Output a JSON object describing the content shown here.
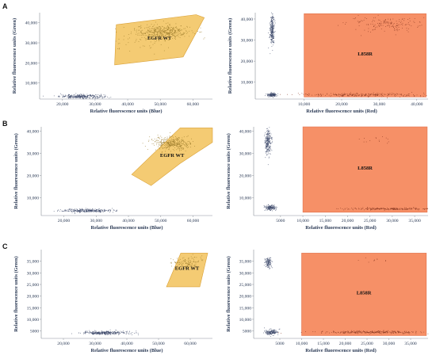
{
  "row_labels": [
    "A",
    "B",
    "C"
  ],
  "colors": {
    "wt_gate_fill": "#f2c25a",
    "wt_gate_stroke": "#d9a035",
    "mut_gate_fill": "#f5875a",
    "mut_gate_stroke": "#e0704a",
    "axis": "#8a9099",
    "neg_cluster": "#3e4a6b",
    "wt_dots": "#9a7a2a",
    "mut_dots": "#8a3a22"
  },
  "chart_data": [
    {
      "id": "A-left",
      "type": "scatter",
      "xlabel": "Relative fluorescence units (Blue)",
      "ylabel": "Relative fluorescence units (Green)",
      "xlim": [
        13000,
        66000
      ],
      "ylim": [
        2000,
        45000
      ],
      "xticks": [
        20000,
        30000,
        40000,
        50000,
        60000
      ],
      "xtick_labels": [
        "20,000",
        "30,000",
        "40,000",
        "50,000",
        "60,000"
      ],
      "yticks": [
        10000,
        20000,
        30000,
        40000
      ],
      "ytick_labels": [
        "10,000",
        "20,000",
        "30,000",
        "40,000"
      ],
      "gate": {
        "label": "EGFR WT",
        "polygon": [
          [
            36000,
            19000
          ],
          [
            36500,
            39000
          ],
          [
            61000,
            44000
          ],
          [
            63500,
            42500
          ],
          [
            57000,
            23000
          ],
          [
            36000,
            19000
          ]
        ]
      },
      "clusters": [
        {
          "role": "negative",
          "cx": 26000,
          "cy": 3300,
          "sx": 3400,
          "sy": 500,
          "n": 320
        },
        {
          "role": "positive",
          "cx": 51000,
          "cy": 35500,
          "sx": 4200,
          "sy": 1700,
          "n": 420
        },
        {
          "role": "positive",
          "cx": 45000,
          "cy": 30000,
          "sx": 5000,
          "sy": 3200,
          "n": 60
        }
      ]
    },
    {
      "id": "A-right",
      "type": "scatter",
      "xlabel": "Relative fluorescence units (Red)",
      "ylabel": "Relative fluorescence units (Green)",
      "xlim": [
        -3000,
        43000
      ],
      "ylim": [
        2000,
        43000
      ],
      "xticks": [
        10000,
        20000,
        30000,
        40000
      ],
      "xtick_labels": [
        "10,000",
        "20,000",
        "30,000",
        "40,000"
      ],
      "yticks": [
        10000,
        20000,
        30000,
        40000
      ],
      "ytick_labels": [
        "10,000",
        "20,000",
        "30,000",
        "40,000"
      ],
      "gate": {
        "label": "L858R",
        "polygon": [
          [
            10000,
            3000
          ],
          [
            10000,
            42500
          ],
          [
            42500,
            42500
          ],
          [
            42500,
            3000
          ],
          [
            10000,
            3000
          ]
        ]
      },
      "clusters": [
        {
          "role": "negative",
          "cx": 1500,
          "cy": 35000,
          "sx": 300,
          "sy": 3800,
          "n": 280
        },
        {
          "role": "negative",
          "cx": 1500,
          "cy": 4000,
          "sx": 600,
          "sy": 400,
          "n": 160
        },
        {
          "role": "positive",
          "cx": 31000,
          "cy": 37500,
          "sx": 5000,
          "sy": 1700,
          "n": 160
        },
        {
          "role": "positive",
          "cx": 26000,
          "cy": 4000,
          "sx": 9000,
          "sy": 400,
          "n": 260
        }
      ]
    },
    {
      "id": "B-left",
      "type": "scatter",
      "xlabel": "Relative fluorescence units (Blue)",
      "ylabel": "Relative fluorescence units (Green)",
      "xlim": [
        13000,
        66000
      ],
      "ylim": [
        2000,
        42000
      ],
      "xticks": [
        20000,
        30000,
        40000,
        50000,
        60000
      ],
      "xtick_labels": [
        "20,000",
        "30,000",
        "40,000",
        "50,000",
        "60,000"
      ],
      "yticks": [
        10000,
        20000,
        30000,
        40000
      ],
      "ytick_labels": [
        "10,000",
        "20,000",
        "30,000",
        "40,000"
      ],
      "gate": {
        "label": "EGFR WT",
        "polygon": [
          [
            41000,
            20500
          ],
          [
            56000,
            41500
          ],
          [
            66000,
            41500
          ],
          [
            66000,
            35000
          ],
          [
            56000,
            25500
          ],
          [
            47000,
            15500
          ],
          [
            41000,
            20500
          ]
        ]
      },
      "clusters": [
        {
          "role": "negative",
          "cx": 27500,
          "cy": 4200,
          "sx": 4000,
          "sy": 400,
          "n": 320
        },
        {
          "role": "positive",
          "cx": 53000,
          "cy": 34500,
          "sx": 3000,
          "sy": 1500,
          "n": 360
        }
      ]
    },
    {
      "id": "B-right",
      "type": "scatter",
      "xlabel": "Relative fluorescence units (Red)",
      "ylabel": "Relative fluorescence units (Green)",
      "xlim": [
        -1000,
        38000
      ],
      "ylim": [
        2000,
        42000
      ],
      "xticks": [
        5000,
        10000,
        15000,
        20000,
        25000,
        30000,
        35000
      ],
      "xtick_labels": [
        "5000",
        "10,000",
        "15,000",
        "20,000",
        "25,000",
        "30,000",
        "35,000"
      ],
      "yticks": [
        10000,
        20000,
        30000,
        40000
      ],
      "ytick_labels": [
        "10,000",
        "20,000",
        "30,000",
        "40,000"
      ],
      "gate": {
        "label": "L858R",
        "polygon": [
          [
            10000,
            3500
          ],
          [
            10000,
            42000
          ],
          [
            37800,
            42000
          ],
          [
            37800,
            3500
          ],
          [
            10000,
            3500
          ]
        ]
      },
      "clusters": [
        {
          "role": "negative",
          "cx": 2200,
          "cy": 35000,
          "sx": 350,
          "sy": 3000,
          "n": 260
        },
        {
          "role": "negative",
          "cx": 2800,
          "cy": 5500,
          "sx": 600,
          "sy": 600,
          "n": 160
        },
        {
          "role": "positive",
          "cx": 29000,
          "cy": 5000,
          "sx": 5000,
          "sy": 250,
          "n": 220
        },
        {
          "role": "positive",
          "cx": 26000,
          "cy": 36000,
          "sx": 2500,
          "sy": 1200,
          "n": 14
        }
      ]
    },
    {
      "id": "C-left",
      "type": "scatter",
      "xlabel": "Relative fluorescence units (Blue)",
      "ylabel": "Relative fluorescence units (Green)",
      "xlim": [
        13000,
        67000
      ],
      "ylim": [
        1800,
        40000
      ],
      "xticks": [
        20000,
        30000,
        40000,
        50000,
        60000
      ],
      "xtick_labels": [
        "20,000",
        "30,000",
        "40,000",
        "50,000",
        "60,000"
      ],
      "yticks": [
        5000,
        10000,
        15000,
        20000,
        25000,
        30000,
        35000
      ],
      "ytick_labels": [
        "5000",
        "10,000",
        "15,000",
        "20,000",
        "25,000",
        "30,000",
        "35,000"
      ],
      "gate": {
        "label": "EGFR WT",
        "polygon": [
          [
            52500,
            24000
          ],
          [
            57000,
            38500
          ],
          [
            65500,
            38500
          ],
          [
            63000,
            24000
          ],
          [
            52500,
            24000
          ]
        ]
      },
      "clusters": [
        {
          "role": "negative",
          "cx": 33000,
          "cy": 4200,
          "sx": 3600,
          "sy": 400,
          "n": 340
        },
        {
          "role": "positive",
          "cx": 59000,
          "cy": 34500,
          "sx": 2500,
          "sy": 1300,
          "n": 120
        }
      ]
    },
    {
      "id": "C-right",
      "type": "scatter",
      "xlabel": "Relative fluorescence units (Red)",
      "ylabel": "Relative fluorescence units (Green)",
      "xlim": [
        -1000,
        39000
      ],
      "ylim": [
        1800,
        40000
      ],
      "xticks": [
        5000,
        10000,
        15000,
        20000,
        25000,
        30000,
        35000
      ],
      "xtick_labels": [
        "5000",
        "10,000",
        "15,000",
        "20,000",
        "25,000",
        "30,000",
        "35,000"
      ],
      "yticks": [
        5000,
        10000,
        15000,
        20000,
        25000,
        30000,
        35000
      ],
      "ytick_labels": [
        "5000",
        "10,000",
        "15,000",
        "20,000",
        "25,000",
        "30,000",
        "35,000"
      ],
      "gate": {
        "label": "L858R",
        "polygon": [
          [
            10000,
            3000
          ],
          [
            10000,
            38500
          ],
          [
            38600,
            38500
          ],
          [
            38600,
            3000
          ],
          [
            10000,
            3000
          ]
        ]
      },
      "clusters": [
        {
          "role": "negative",
          "cx": 2300,
          "cy": 34500,
          "sx": 400,
          "sy": 1200,
          "n": 130
        },
        {
          "role": "negative",
          "cx": 3000,
          "cy": 4500,
          "sx": 700,
          "sy": 500,
          "n": 180
        },
        {
          "role": "positive",
          "cx": 26000,
          "cy": 4500,
          "sx": 6000,
          "sy": 300,
          "n": 280
        },
        {
          "role": "positive",
          "cx": 26500,
          "cy": 35500,
          "sx": 1500,
          "sy": 500,
          "n": 10
        }
      ]
    }
  ]
}
